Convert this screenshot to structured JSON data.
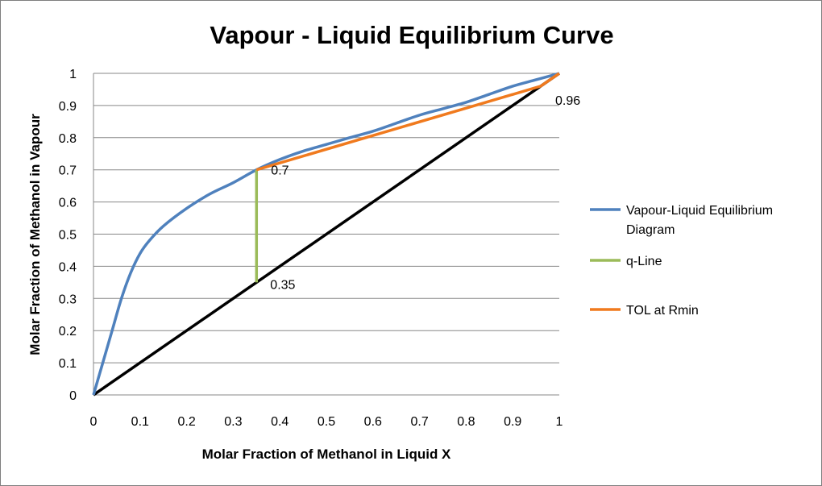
{
  "chart_data": {
    "type": "line",
    "title": "Vapour - Liquid Equilibrium Curve",
    "xlabel": "Molar Fraction of Methanol in Liquid X",
    "ylabel": "Molar Fraction of Methanol in Vapour",
    "xlim": [
      0,
      1
    ],
    "ylim": [
      0,
      1
    ],
    "x_ticks": [
      "0",
      "0.1",
      "0.2",
      "0.3",
      "0.4",
      "0.5",
      "0.6",
      "0.7",
      "0.8",
      "0.9",
      "1"
    ],
    "y_ticks": [
      "0",
      "0.1",
      "0.2",
      "0.3",
      "0.4",
      "0.5",
      "0.6",
      "0.7",
      "0.8",
      "0.9",
      "1"
    ],
    "grid": "horizontal",
    "legend_position": "right",
    "series": [
      {
        "name": "Vapour-Liquid Equilibrium Diagram",
        "color": "#4f81bd",
        "x": [
          0,
          0.02,
          0.04,
          0.06,
          0.08,
          0.1,
          0.12,
          0.15,
          0.2,
          0.25,
          0.3,
          0.35,
          0.4,
          0.45,
          0.5,
          0.55,
          0.6,
          0.65,
          0.7,
          0.75,
          0.8,
          0.85,
          0.9,
          0.95,
          1.0
        ],
        "y": [
          0,
          0.1,
          0.2,
          0.3,
          0.38,
          0.44,
          0.48,
          0.525,
          0.58,
          0.625,
          0.66,
          0.7,
          0.732,
          0.758,
          0.779,
          0.8,
          0.82,
          0.845,
          0.87,
          0.89,
          0.91,
          0.935,
          0.96,
          0.98,
          1.0
        ]
      },
      {
        "name": "q-Line",
        "color": "#9bbb59",
        "x": [
          0.35,
          0.35
        ],
        "y": [
          0.35,
          0.7
        ]
      },
      {
        "name": "TOL at Rmin",
        "color": "#f07a1e",
        "x": [
          0.35,
          0.96,
          1.0
        ],
        "y": [
          0.7,
          0.96,
          1.0
        ]
      }
    ],
    "diagonal": {
      "color": "#000000",
      "x": [
        0,
        1
      ],
      "y": [
        0,
        1
      ]
    },
    "annotations": [
      {
        "text": "0.96",
        "x": 1.0,
        "y": 0.96
      },
      {
        "text": "0.7",
        "x": 0.35,
        "y": 0.7
      },
      {
        "text": "0.35",
        "x": 0.35,
        "y": 0.35
      }
    ]
  }
}
